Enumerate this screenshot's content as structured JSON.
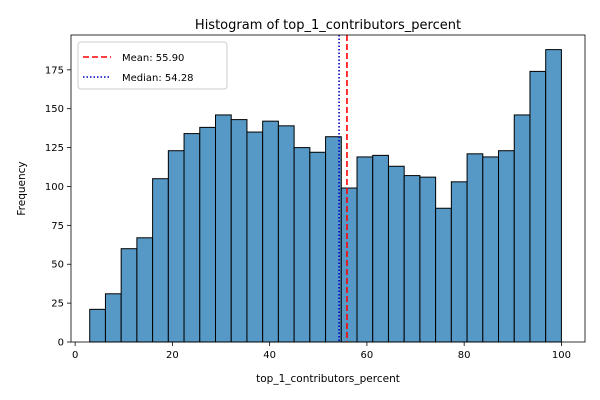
{
  "chart_data": {
    "type": "bar",
    "title": "Histogram of top_1_contributors_percent",
    "xlabel": "top_1_contributors_percent",
    "ylabel": "Frequency",
    "xlim": [
      -0.85,
      104.85
    ],
    "ylim": [
      0,
      197.4
    ],
    "xticks": [
      0,
      20,
      40,
      60,
      80,
      100
    ],
    "yticks": [
      0,
      25,
      50,
      75,
      100,
      125,
      150,
      175
    ],
    "bar_color": "#5799c6",
    "bar_edge_color": "#000000",
    "bins": [
      {
        "x0": 3.0,
        "x1": 6.233,
        "count": 21
      },
      {
        "x0": 6.233,
        "x1": 9.467,
        "count": 31
      },
      {
        "x0": 9.467,
        "x1": 12.7,
        "count": 60
      },
      {
        "x0": 12.7,
        "x1": 15.933,
        "count": 67
      },
      {
        "x0": 15.933,
        "x1": 19.167,
        "count": 105
      },
      {
        "x0": 19.167,
        "x1": 22.4,
        "count": 123
      },
      {
        "x0": 22.4,
        "x1": 25.633,
        "count": 134
      },
      {
        "x0": 25.633,
        "x1": 28.867,
        "count": 138
      },
      {
        "x0": 28.867,
        "x1": 32.1,
        "count": 146
      },
      {
        "x0": 32.1,
        "x1": 35.333,
        "count": 143
      },
      {
        "x0": 35.333,
        "x1": 38.567,
        "count": 135
      },
      {
        "x0": 38.567,
        "x1": 41.8,
        "count": 142
      },
      {
        "x0": 41.8,
        "x1": 45.033,
        "count": 139
      },
      {
        "x0": 45.033,
        "x1": 48.267,
        "count": 125
      },
      {
        "x0": 48.267,
        "x1": 51.5,
        "count": 122
      },
      {
        "x0": 51.5,
        "x1": 54.733,
        "count": 132
      },
      {
        "x0": 54.733,
        "x1": 57.967,
        "count": 99
      },
      {
        "x0": 57.967,
        "x1": 61.2,
        "count": 119
      },
      {
        "x0": 61.2,
        "x1": 64.433,
        "count": 120
      },
      {
        "x0": 64.433,
        "x1": 67.667,
        "count": 113
      },
      {
        "x0": 67.667,
        "x1": 70.9,
        "count": 107
      },
      {
        "x0": 70.9,
        "x1": 74.133,
        "count": 106
      },
      {
        "x0": 74.133,
        "x1": 77.367,
        "count": 86
      },
      {
        "x0": 77.367,
        "x1": 80.6,
        "count": 103
      },
      {
        "x0": 80.6,
        "x1": 83.833,
        "count": 121
      },
      {
        "x0": 83.833,
        "x1": 87.067,
        "count": 119
      },
      {
        "x0": 87.067,
        "x1": 90.3,
        "count": 123
      },
      {
        "x0": 90.3,
        "x1": 93.533,
        "count": 146
      },
      {
        "x0": 93.533,
        "x1": 96.767,
        "count": 174
      },
      {
        "x0": 96.767,
        "x1": 100.0,
        "count": 188
      }
    ],
    "reference_lines": [
      {
        "label": "Mean: 55.90",
        "value": 55.9,
        "color": "#ff0000",
        "style": "dashed"
      },
      {
        "label": "Median: 54.28",
        "value": 54.28,
        "color": "#0000bf",
        "style": "dotted"
      }
    ],
    "legend_position": "top-left",
    "grid": false
  }
}
